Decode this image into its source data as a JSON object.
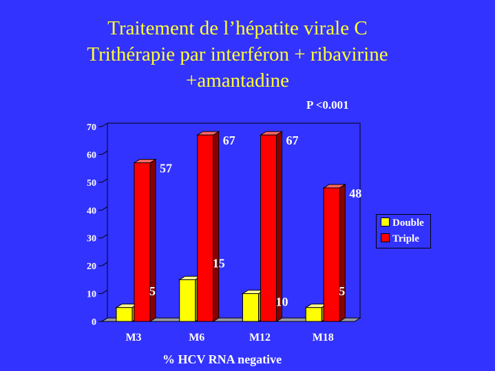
{
  "title_lines": [
    "Traitement de l’hépatite virale C",
    "Trithérapie par interféron  + ribavirine",
    "+amantadine"
  ],
  "p_value": "P <0.001",
  "colors": {
    "background": "#3333ff",
    "title": "#ffff33",
    "double": "#ffff00",
    "triple": "#ff0000"
  },
  "chart_data": {
    "type": "bar",
    "categories": [
      "M3",
      "M6",
      "M12",
      "M18"
    ],
    "series": [
      {
        "name": "Double",
        "values": [
          5,
          15,
          10,
          5
        ]
      },
      {
        "name": "Triple",
        "values": [
          57,
          67,
          67,
          48
        ]
      }
    ],
    "ylim": [
      0,
      70
    ],
    "yticks": [
      "0",
      "10",
      "20",
      "30",
      "40",
      "50",
      "60",
      "70"
    ],
    "data_labels": {
      "Double": [
        "5",
        "15",
        "10",
        "5"
      ],
      "Triple": [
        "57",
        "67",
        "67",
        "48"
      ]
    },
    "xlabel": "% HCV RNA negative",
    "ylabel": "",
    "legend": [
      "Double",
      "Triple"
    ],
    "legend_position": "right",
    "grid": false
  }
}
